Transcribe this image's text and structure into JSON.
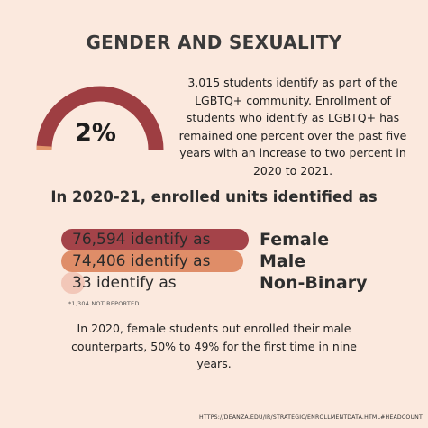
{
  "title": "GENDER AND SEXUALITY",
  "gauge": {
    "percent_label": "2%",
    "value_percent": 2,
    "fill_color": "#9e3e42",
    "accent_color": "#e2956b"
  },
  "intro_text": "3,015 students identify as part of the LGBTQ+ community. Enrollment of students who identify as LGBTQ+ has remained one percent over the past five years with an increase to two percent in 2020 to 2021.",
  "section_heading": "In 2020-21, enrolled units identified as",
  "chart_data": {
    "type": "bar",
    "orientation": "horizontal",
    "title": "",
    "categories": [
      "Female",
      "Male",
      "Non-Binary"
    ],
    "values": [
      76594,
      74406,
      33
    ],
    "value_labels": [
      "76,594 identify as",
      "74,406 identify as",
      "33 identify as"
    ],
    "colors": [
      "#a44349",
      "#df8d68",
      "#f2c7b8"
    ],
    "xlim": [
      0,
      76594
    ]
  },
  "footnote": "*1,304 NOT REPORTED",
  "closing_text": "In 2020, female students out enrolled their male counterparts, 50% to 49% for the first time in nine years.",
  "source": "HTTPS://DEANZA.EDU/IR/STRATEGIC/ENROLLMENTDATA.HTML#HEADCOUNT"
}
